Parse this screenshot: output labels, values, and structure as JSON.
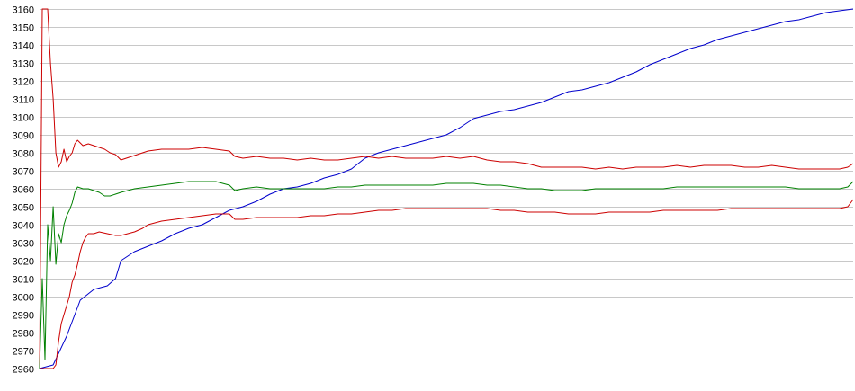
{
  "chart_data": {
    "type": "line",
    "title": "",
    "xlabel": "",
    "ylabel": "",
    "ylim": [
      2960,
      3160
    ],
    "yticks": [
      2960,
      2970,
      2980,
      2990,
      3000,
      3010,
      3020,
      3030,
      3040,
      3050,
      3060,
      3070,
      3080,
      3090,
      3100,
      3110,
      3120,
      3130,
      3140,
      3150,
      3160
    ],
    "xlim": [
      0,
      300
    ],
    "grid": {
      "horizontal": true,
      "vertical": false
    },
    "legend": "none",
    "series": [
      {
        "color": "#0000cc",
        "points": [
          [
            0,
            2960
          ],
          [
            5,
            2962
          ],
          [
            10,
            2978
          ],
          [
            15,
            2998
          ],
          [
            20,
            3004
          ],
          [
            25,
            3006
          ],
          [
            28,
            3010
          ],
          [
            30,
            3020
          ],
          [
            35,
            3025
          ],
          [
            40,
            3028
          ],
          [
            45,
            3031
          ],
          [
            50,
            3035
          ],
          [
            55,
            3038
          ],
          [
            60,
            3040
          ],
          [
            65,
            3044
          ],
          [
            70,
            3048
          ],
          [
            75,
            3050
          ],
          [
            80,
            3053
          ],
          [
            85,
            3057
          ],
          [
            90,
            3060
          ],
          [
            95,
            3061
          ],
          [
            100,
            3063
          ],
          [
            105,
            3066
          ],
          [
            110,
            3068
          ],
          [
            115,
            3071
          ],
          [
            120,
            3077
          ],
          [
            125,
            3080
          ],
          [
            130,
            3082
          ],
          [
            135,
            3084
          ],
          [
            140,
            3086
          ],
          [
            145,
            3088
          ],
          [
            150,
            3090
          ],
          [
            155,
            3094
          ],
          [
            160,
            3099
          ],
          [
            165,
            3101
          ],
          [
            170,
            3103
          ],
          [
            175,
            3104
          ],
          [
            180,
            3106
          ],
          [
            185,
            3108
          ],
          [
            190,
            3111
          ],
          [
            195,
            3114
          ],
          [
            200,
            3115
          ],
          [
            205,
            3117
          ],
          [
            210,
            3119
          ],
          [
            215,
            3122
          ],
          [
            220,
            3125
          ],
          [
            225,
            3129
          ],
          [
            230,
            3132
          ],
          [
            235,
            3135
          ],
          [
            240,
            3138
          ],
          [
            245,
            3140
          ],
          [
            250,
            3143
          ],
          [
            255,
            3145
          ],
          [
            260,
            3147
          ],
          [
            265,
            3149
          ],
          [
            270,
            3151
          ],
          [
            275,
            3153
          ],
          [
            280,
            3154
          ],
          [
            285,
            3156
          ],
          [
            290,
            3158
          ],
          [
            295,
            3159
          ],
          [
            300,
            3160
          ]
        ]
      },
      {
        "color": "#cc0000",
        "points": [
          [
            0,
            2960
          ],
          [
            1,
            3160
          ],
          [
            2,
            3160
          ],
          [
            3,
            3160
          ],
          [
            4,
            3130
          ],
          [
            5,
            3110
          ],
          [
            6,
            3080
          ],
          [
            7,
            3072
          ],
          [
            8,
            3075
          ],
          [
            9,
            3082
          ],
          [
            10,
            3075
          ],
          [
            11,
            3078
          ],
          [
            12,
            3080
          ],
          [
            13,
            3085
          ],
          [
            14,
            3087
          ],
          [
            16,
            3084
          ],
          [
            18,
            3085
          ],
          [
            20,
            3084
          ],
          [
            22,
            3083
          ],
          [
            24,
            3082
          ],
          [
            26,
            3080
          ],
          [
            28,
            3079
          ],
          [
            30,
            3076
          ],
          [
            32,
            3077
          ],
          [
            34,
            3078
          ],
          [
            36,
            3079
          ],
          [
            38,
            3080
          ],
          [
            40,
            3081
          ],
          [
            45,
            3082
          ],
          [
            50,
            3082
          ],
          [
            55,
            3082
          ],
          [
            60,
            3083
          ],
          [
            65,
            3082
          ],
          [
            70,
            3081
          ],
          [
            72,
            3078
          ],
          [
            75,
            3077
          ],
          [
            80,
            3078
          ],
          [
            85,
            3077
          ],
          [
            90,
            3077
          ],
          [
            95,
            3076
          ],
          [
            100,
            3077
          ],
          [
            105,
            3076
          ],
          [
            110,
            3076
          ],
          [
            115,
            3077
          ],
          [
            120,
            3078
          ],
          [
            125,
            3077
          ],
          [
            130,
            3078
          ],
          [
            135,
            3077
          ],
          [
            140,
            3077
          ],
          [
            145,
            3077
          ],
          [
            150,
            3078
          ],
          [
            155,
            3077
          ],
          [
            160,
            3078
          ],
          [
            165,
            3076
          ],
          [
            170,
            3075
          ],
          [
            175,
            3075
          ],
          [
            180,
            3074
          ],
          [
            185,
            3072
          ],
          [
            190,
            3072
          ],
          [
            195,
            3072
          ],
          [
            200,
            3072
          ],
          [
            205,
            3071
          ],
          [
            210,
            3072
          ],
          [
            215,
            3071
          ],
          [
            220,
            3072
          ],
          [
            225,
            3072
          ],
          [
            230,
            3072
          ],
          [
            235,
            3073
          ],
          [
            240,
            3072
          ],
          [
            245,
            3073
          ],
          [
            250,
            3073
          ],
          [
            255,
            3073
          ],
          [
            260,
            3072
          ],
          [
            265,
            3072
          ],
          [
            270,
            3073
          ],
          [
            275,
            3072
          ],
          [
            280,
            3071
          ],
          [
            285,
            3071
          ],
          [
            290,
            3071
          ],
          [
            295,
            3071
          ],
          [
            298,
            3072
          ],
          [
            300,
            3074
          ]
        ]
      },
      {
        "color": "#008000",
        "points": [
          [
            0,
            2960
          ],
          [
            1,
            3010
          ],
          [
            2,
            2965
          ],
          [
            3,
            3040
          ],
          [
            4,
            3020
          ],
          [
            5,
            3050
          ],
          [
            6,
            3018
          ],
          [
            7,
            3035
          ],
          [
            8,
            3030
          ],
          [
            9,
            3040
          ],
          [
            10,
            3045
          ],
          [
            11,
            3048
          ],
          [
            12,
            3052
          ],
          [
            13,
            3058
          ],
          [
            14,
            3061
          ],
          [
            16,
            3060
          ],
          [
            18,
            3060
          ],
          [
            20,
            3059
          ],
          [
            22,
            3058
          ],
          [
            24,
            3056
          ],
          [
            26,
            3056
          ],
          [
            28,
            3057
          ],
          [
            30,
            3058
          ],
          [
            35,
            3060
          ],
          [
            40,
            3061
          ],
          [
            45,
            3062
          ],
          [
            50,
            3063
          ],
          [
            55,
            3064
          ],
          [
            60,
            3064
          ],
          [
            65,
            3064
          ],
          [
            70,
            3062
          ],
          [
            72,
            3059
          ],
          [
            75,
            3060
          ],
          [
            80,
            3061
          ],
          [
            85,
            3060
          ],
          [
            90,
            3060
          ],
          [
            95,
            3060
          ],
          [
            100,
            3060
          ],
          [
            105,
            3060
          ],
          [
            110,
            3061
          ],
          [
            115,
            3061
          ],
          [
            120,
            3062
          ],
          [
            125,
            3062
          ],
          [
            130,
            3062
          ],
          [
            135,
            3062
          ],
          [
            140,
            3062
          ],
          [
            145,
            3062
          ],
          [
            150,
            3063
          ],
          [
            155,
            3063
          ],
          [
            160,
            3063
          ],
          [
            165,
            3062
          ],
          [
            170,
            3062
          ],
          [
            175,
            3061
          ],
          [
            180,
            3060
          ],
          [
            185,
            3060
          ],
          [
            190,
            3059
          ],
          [
            195,
            3059
          ],
          [
            200,
            3059
          ],
          [
            205,
            3060
          ],
          [
            210,
            3060
          ],
          [
            215,
            3060
          ],
          [
            220,
            3060
          ],
          [
            225,
            3060
          ],
          [
            230,
            3060
          ],
          [
            235,
            3061
          ],
          [
            240,
            3061
          ],
          [
            245,
            3061
          ],
          [
            250,
            3061
          ],
          [
            255,
            3061
          ],
          [
            260,
            3061
          ],
          [
            265,
            3061
          ],
          [
            270,
            3061
          ],
          [
            275,
            3061
          ],
          [
            280,
            3060
          ],
          [
            285,
            3060
          ],
          [
            290,
            3060
          ],
          [
            295,
            3060
          ],
          [
            298,
            3061
          ],
          [
            300,
            3064
          ]
        ]
      },
      {
        "color": "#cc0000",
        "points": [
          [
            0,
            2960
          ],
          [
            1,
            2960
          ],
          [
            2,
            2960
          ],
          [
            3,
            2960
          ],
          [
            4,
            2960
          ],
          [
            5,
            2960
          ],
          [
            6,
            2962
          ],
          [
            7,
            2975
          ],
          [
            8,
            2985
          ],
          [
            9,
            2990
          ],
          [
            10,
            2995
          ],
          [
            11,
            3000
          ],
          [
            12,
            3008
          ],
          [
            13,
            3012
          ],
          [
            14,
            3018
          ],
          [
            15,
            3025
          ],
          [
            16,
            3030
          ],
          [
            17,
            3033
          ],
          [
            18,
            3035
          ],
          [
            20,
            3035
          ],
          [
            22,
            3036
          ],
          [
            25,
            3035
          ],
          [
            28,
            3034
          ],
          [
            30,
            3034
          ],
          [
            35,
            3036
          ],
          [
            38,
            3038
          ],
          [
            40,
            3040
          ],
          [
            45,
            3042
          ],
          [
            50,
            3043
          ],
          [
            55,
            3044
          ],
          [
            60,
            3045
          ],
          [
            65,
            3046
          ],
          [
            70,
            3046
          ],
          [
            72,
            3043
          ],
          [
            75,
            3043
          ],
          [
            80,
            3044
          ],
          [
            85,
            3044
          ],
          [
            90,
            3044
          ],
          [
            95,
            3044
          ],
          [
            100,
            3045
          ],
          [
            105,
            3045
          ],
          [
            110,
            3046
          ],
          [
            115,
            3046
          ],
          [
            120,
            3047
          ],
          [
            125,
            3048
          ],
          [
            130,
            3048
          ],
          [
            135,
            3049
          ],
          [
            140,
            3049
          ],
          [
            145,
            3049
          ],
          [
            150,
            3049
          ],
          [
            155,
            3049
          ],
          [
            160,
            3049
          ],
          [
            165,
            3049
          ],
          [
            170,
            3048
          ],
          [
            175,
            3048
          ],
          [
            180,
            3047
          ],
          [
            185,
            3047
          ],
          [
            190,
            3047
          ],
          [
            195,
            3046
          ],
          [
            200,
            3046
          ],
          [
            205,
            3046
          ],
          [
            210,
            3047
          ],
          [
            215,
            3047
          ],
          [
            220,
            3047
          ],
          [
            225,
            3047
          ],
          [
            230,
            3048
          ],
          [
            235,
            3048
          ],
          [
            240,
            3048
          ],
          [
            245,
            3048
          ],
          [
            250,
            3048
          ],
          [
            255,
            3049
          ],
          [
            260,
            3049
          ],
          [
            265,
            3049
          ],
          [
            270,
            3049
          ],
          [
            275,
            3049
          ],
          [
            280,
            3049
          ],
          [
            285,
            3049
          ],
          [
            290,
            3049
          ],
          [
            295,
            3049
          ],
          [
            298,
            3050
          ],
          [
            300,
            3054
          ]
        ]
      }
    ]
  }
}
